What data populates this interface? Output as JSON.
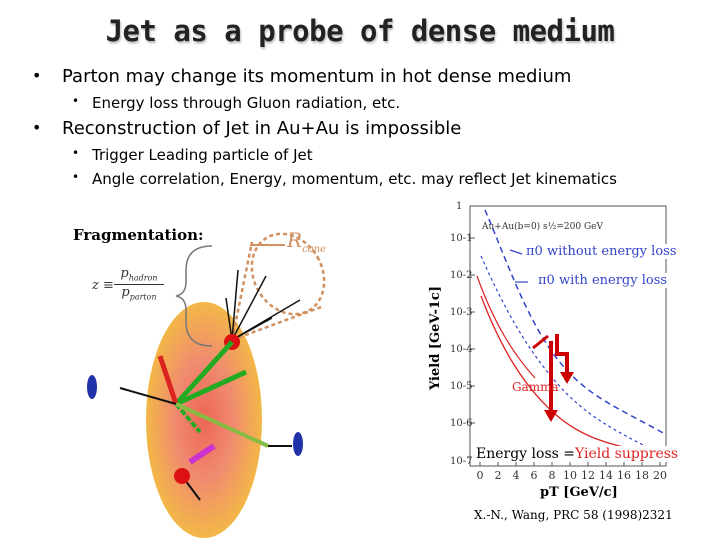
{
  "slide": {
    "title": "Jet as a probe of dense medium",
    "bullets": [
      {
        "text": "Parton may change its momentum in hot dense medium",
        "sub": [
          "Energy loss through Gluon radiation, etc."
        ]
      },
      {
        "text": "Reconstruction of Jet in Au+Au is impossible",
        "sub": [
          "Trigger Leading particle of Jet",
          "Angle correlation, Energy, momentum, etc. may reflect Jet kinematics"
        ]
      }
    ]
  },
  "diagram": {
    "fragmentation_label": "Fragmentation:",
    "formula_lhs": "z ≡",
    "formula_num": "p",
    "formula_num_sub": "hadron",
    "formula_den": "p",
    "formula_den_sub": "parton",
    "cone_label": "R",
    "cone_sub": "cone"
  },
  "plot": {
    "ylabel": "Yield [GeV-1c]",
    "xlabel": "pT [GeV/c]",
    "legend_header": "Au+Au(b=0)  s½=200 GeV",
    "ytick_labels": [
      "1",
      "10-1",
      "10-2",
      "10-3",
      "10-4",
      "10-5",
      "10-6",
      "10-7"
    ],
    "xtick_labels": [
      "0",
      "2",
      "4",
      "6",
      "8",
      "10",
      "12",
      "14",
      "16",
      "18",
      "20"
    ],
    "label_without": "π0 without energy loss",
    "label_with": "π0 with energy loss",
    "label_gamma": "Gamma",
    "label_energy_loss": "Energy loss =",
    "label_yield_suppress": "Yield suppress",
    "reference": "X.-N., Wang, PRC 58 (1998)2321",
    "colors": {
      "blue": "#3344cc",
      "red": "#dd2222",
      "arrow": "#cc0000"
    }
  }
}
